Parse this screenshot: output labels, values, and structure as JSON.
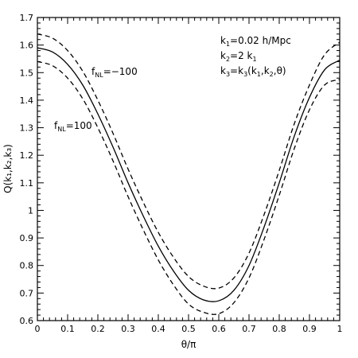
{
  "chart_data": {
    "type": "line",
    "xlabel": "θ/π",
    "ylabel": "Q(k₁,k₂,k₃)",
    "xlim": [
      0,
      1
    ],
    "ylim": [
      0.6,
      1.7
    ],
    "x_ticks": [
      "0",
      "0.1",
      "0.2",
      "0.3",
      "0.4",
      "0.5",
      "0.6",
      "0.7",
      "0.8",
      "0.9",
      "1"
    ],
    "y_ticks": [
      "0.6",
      "0.7",
      "0.8",
      "0.9",
      "1",
      "1.1",
      "1.2",
      "1.3",
      "1.4",
      "1.5",
      "1.6",
      "1.7"
    ],
    "grid": false,
    "x": [
      0,
      0.05,
      0.1,
      0.15,
      0.2,
      0.25,
      0.3,
      0.35,
      0.4,
      0.45,
      0.5,
      0.55,
      0.6,
      0.65,
      0.7,
      0.75,
      0.8,
      0.85,
      0.9,
      0.95,
      1.0
    ],
    "series": [
      {
        "style": "solid",
        "values": [
          1.59,
          1.575,
          1.53,
          1.455,
          1.35,
          1.23,
          1.1,
          0.98,
          0.87,
          0.78,
          0.71,
          0.675,
          0.672,
          0.71,
          0.8,
          0.94,
          1.1,
          1.27,
          1.41,
          1.51,
          1.545
        ]
      },
      {
        "name": "f_NL=−100",
        "style": "dashed",
        "values": [
          1.64,
          1.625,
          1.58,
          1.505,
          1.4,
          1.28,
          1.15,
          1.03,
          0.92,
          0.83,
          0.76,
          0.725,
          0.718,
          0.755,
          0.845,
          0.985,
          1.145,
          1.315,
          1.455,
          1.565,
          1.61
        ]
      },
      {
        "name": "f_NL=100",
        "style": "dashed",
        "values": [
          1.54,
          1.525,
          1.48,
          1.405,
          1.3,
          1.18,
          1.05,
          0.93,
          0.82,
          0.73,
          0.66,
          0.63,
          0.625,
          0.665,
          0.755,
          0.895,
          1.055,
          1.225,
          1.365,
          1.455,
          1.475
        ]
      }
    ],
    "annotations": {
      "fnl_minus": {
        "main": "f",
        "sub": "NL",
        "rest": "=−100"
      },
      "fnl_plus": {
        "main": "f",
        "sub": "NL",
        "rest": "=100"
      },
      "k1": {
        "main": "k",
        "sub": "1",
        "rest": "=0.02 h/Mpc"
      },
      "k2": {
        "main": "k",
        "sub": "2",
        "rest_a": "=2 k",
        "sub2": "1"
      },
      "k3": {
        "main": "k",
        "sub": "3",
        "rest_a": "=k",
        "sub2": "3",
        "rest_b": "(k",
        "sub3": "1",
        "rest_c": ",k",
        "sub4": "2",
        "rest_d": ",θ)"
      }
    }
  }
}
